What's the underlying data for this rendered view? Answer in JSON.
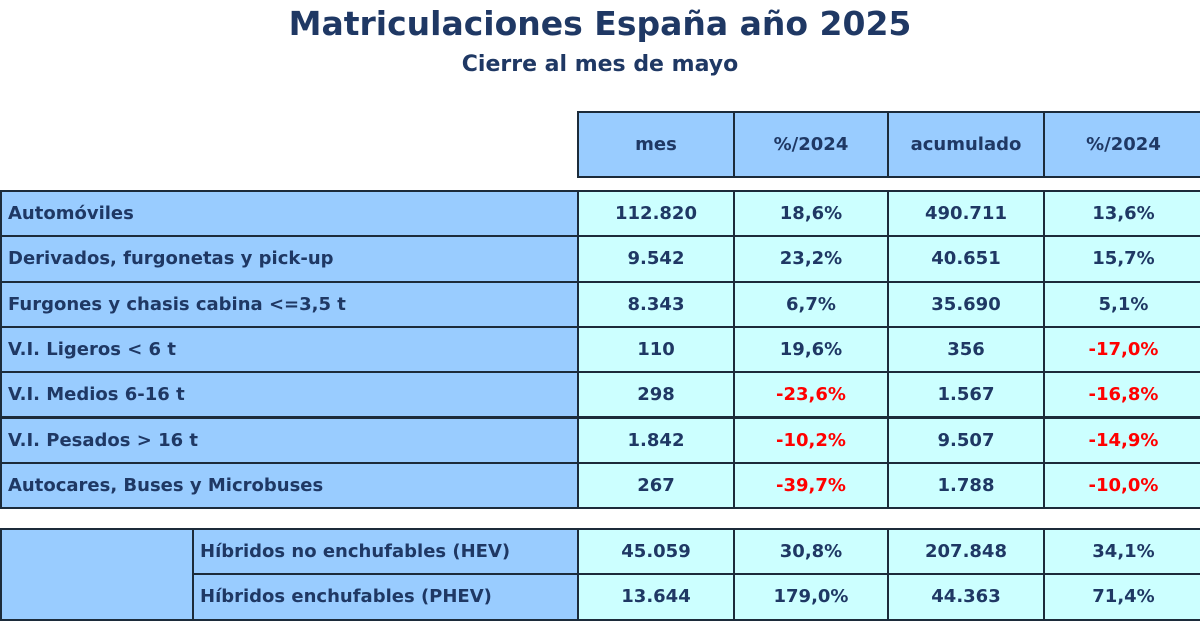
{
  "header": {
    "title": "Matriculaciones España año 2025",
    "subtitle": "Cierre al mes de mayo"
  },
  "table": {
    "columns": [
      "mes",
      "%/2024",
      "acumulado",
      "%/2024"
    ],
    "rows": [
      [
        "Automóviles",
        "112.820",
        "18,6%",
        "490.711",
        "13,6%"
      ],
      [
        "Derivados, furgonetas y pick-up",
        "9.542",
        "23,2%",
        "40.651",
        "15,7%"
      ],
      [
        "Furgones y chasis cabina <=3,5 t",
        "8.343",
        "6,7%",
        "35.690",
        "5,1%"
      ],
      [
        "V.I. Ligeros < 6 t",
        "110",
        "19,6%",
        "356",
        "-17,0%"
      ],
      [
        "V.I. Medios 6-16 t",
        "298",
        "-23,6%",
        "1.567",
        "-16,8%"
      ],
      [
        "V.I. Pesados > 16 t",
        "1.842",
        "-10,2%",
        "9.507",
        "-14,9%"
      ],
      [
        "Autocares, Buses y Microbuses",
        "267",
        "-39,7%",
        "1.788",
        "-10,0%"
      ]
    ]
  },
  "table2": {
    "rows": [
      [
        "Híbridos no enchufables (HEV)",
        "45.059",
        "30,8%",
        "207.848",
        "34,1%"
      ],
      [
        "Híbridos enchufables (PHEV)",
        "13.644",
        "179,0%",
        "44.363",
        "71,4%"
      ]
    ]
  }
}
